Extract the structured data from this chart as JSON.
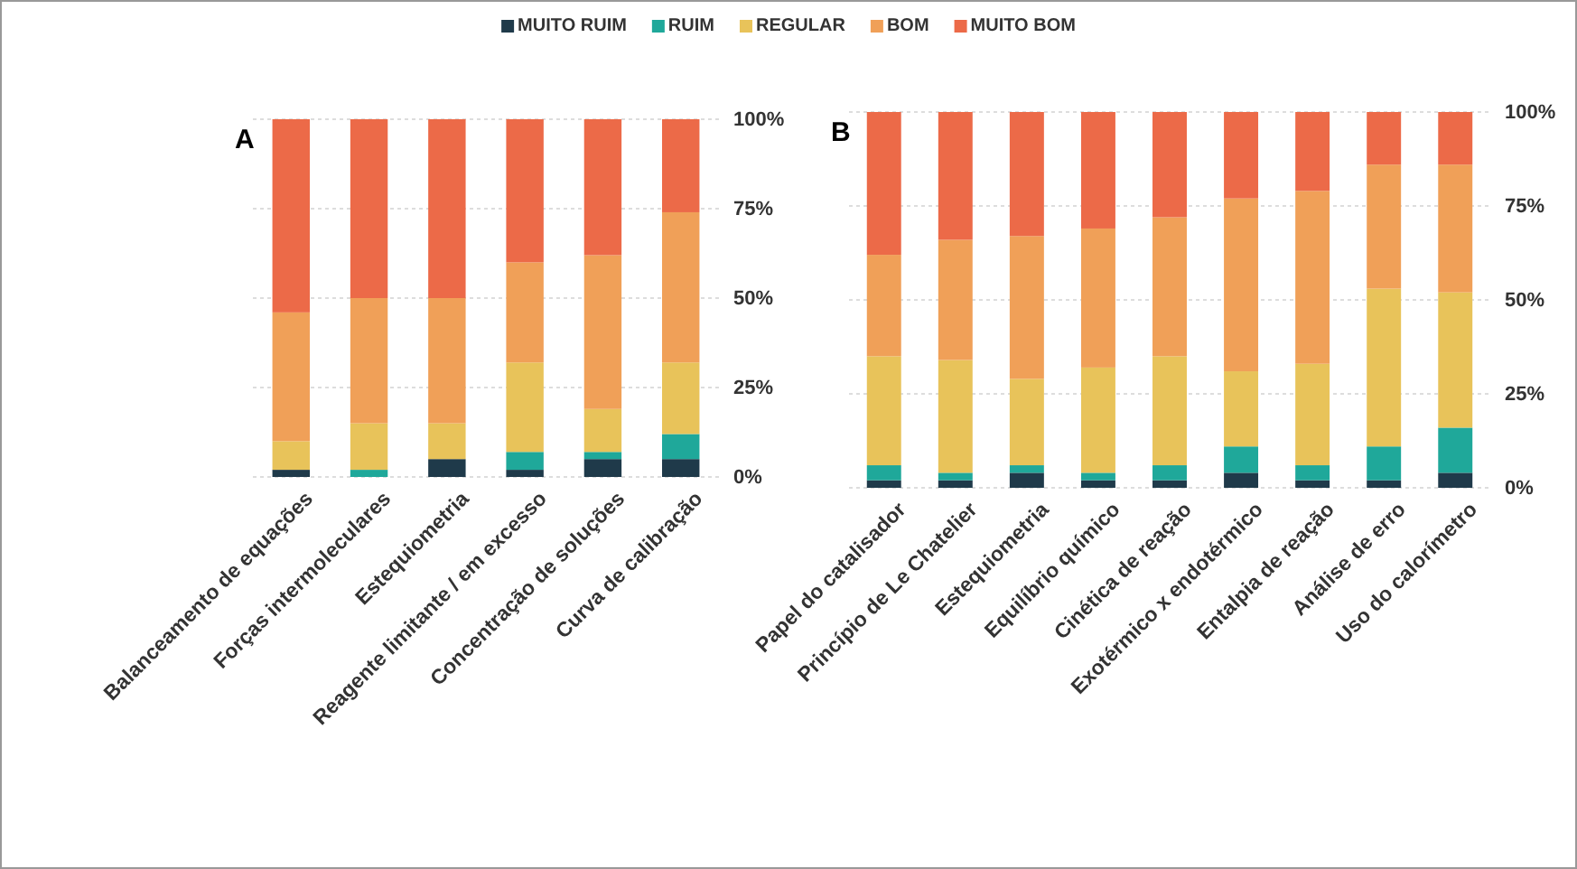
{
  "chart_data": [
    {
      "type": "bar",
      "title": "A",
      "stacked": true,
      "legend": "top",
      "grid": "y",
      "categories": [
        "Balanceamento de equações",
        "Forças intermoleculares",
        "Estequiometria",
        "Reagente limitante / em excesso",
        "Concentração de soluções",
        "Curva de calibração"
      ],
      "ylim": [
        0,
        100
      ],
      "yticks": [
        {
          "value": 0,
          "label": "0%"
        },
        {
          "value": 25,
          "label": "25%"
        },
        {
          "value": 50,
          "label": "50%"
        },
        {
          "value": 75,
          "label": "75%"
        },
        {
          "value": 100,
          "label": "100%"
        }
      ],
      "series": [
        {
          "name": "MUITO RUIM",
          "color": "#1f3a4a",
          "values": [
            2,
            0,
            5,
            2,
            5,
            5
          ]
        },
        {
          "name": "RUIM",
          "color": "#1fa89a",
          "values": [
            0,
            2,
            0,
            5,
            2,
            7
          ]
        },
        {
          "name": "REGULAR",
          "color": "#e8c35a",
          "values": [
            8,
            13,
            10,
            25,
            12,
            20
          ]
        },
        {
          "name": "BOM",
          "color": "#f0a058",
          "values": [
            36,
            35,
            35,
            28,
            43,
            42
          ]
        },
        {
          "name": "MUITO BOM",
          "color": "#ec6a48",
          "values": [
            54,
            50,
            50,
            40,
            38,
            26
          ]
        }
      ]
    },
    {
      "type": "bar",
      "title": "B",
      "stacked": true,
      "grid": "y",
      "categories": [
        "Papel do catalisador",
        "Princípio de Le Chatelier",
        "Estequiometria",
        "Equilíbrio químico",
        "Cinética de reação",
        "Exotérmico x endotérmico",
        "Entalpia de reação",
        "Análise de erro",
        "Uso do calorímetro"
      ],
      "ylim": [
        0,
        100
      ],
      "yticks": [
        {
          "value": 0,
          "label": "0%"
        },
        {
          "value": 25,
          "label": "25%"
        },
        {
          "value": 50,
          "label": "50%"
        },
        {
          "value": 75,
          "label": "75%"
        },
        {
          "value": 100,
          "label": "100%"
        }
      ],
      "series": [
        {
          "color": "#1f3a4a",
          "values": [
            2,
            2,
            4,
            2,
            2,
            4,
            2,
            2,
            4
          ]
        },
        {
          "color": "#1fa89a",
          "values": [
            4,
            2,
            2,
            2,
            4,
            7,
            4,
            9,
            12
          ]
        },
        {
          "color": "#e8c35a",
          "values": [
            29,
            30,
            23,
            28,
            29,
            20,
            27,
            42,
            36
          ]
        },
        {
          "color": "#f0a058",
          "values": [
            27,
            32,
            38,
            37,
            37,
            46,
            46,
            33,
            34
          ]
        },
        {
          "color": "#ec6a48",
          "values": [
            38,
            34,
            33,
            31,
            28,
            23,
            21,
            14,
            14
          ]
        }
      ]
    }
  ]
}
